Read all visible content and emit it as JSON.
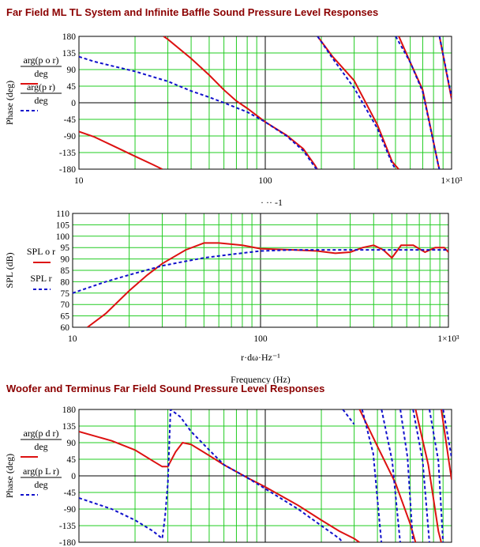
{
  "sections": {
    "title1": "Far Field ML TL System and Infinite Baffle Sound Pressure Level Responses",
    "title2": "Woofer and Terminus Far Field Sound Pressure Level Responses"
  },
  "colors": {
    "red": "#dd1111",
    "blue": "#1111cc",
    "grid": "#22cc22",
    "axis": "#000000"
  },
  "chart_data": [
    {
      "type": "line",
      "ylabel": "Phase (deg)",
      "x_scale": "log",
      "xlim": [
        10,
        1000
      ],
      "ylim": [
        -180,
        180
      ],
      "yticks": [
        "180",
        "135",
        "90",
        "45",
        "0",
        "-45",
        "-90",
        "-135",
        "-180"
      ],
      "xticks": [
        "10",
        "100",
        "1×10³"
      ],
      "xlabel_partial": "· ··  -1",
      "legend": [
        {
          "num": "arg(p o r)",
          "den": "deg",
          "style": "solid",
          "color": "red"
        },
        {
          "num": "arg(p r)",
          "den": "deg",
          "style": "dashed",
          "color": "blue"
        }
      ],
      "series": [
        {
          "style": "solid",
          "color": "red",
          "points": [
            [
              10,
              -78
            ],
            [
              12,
              -92
            ],
            [
              15,
              -115
            ],
            [
              20,
              -145
            ],
            [
              25,
              -168
            ],
            [
              28,
              -180
            ],
            [
              28.5,
              180
            ],
            [
              30,
              172
            ],
            [
              40,
              120
            ],
            [
              50,
              75
            ],
            [
              60,
              35
            ],
            [
              70,
              5
            ],
            [
              80,
              -15
            ],
            [
              100,
              -52
            ],
            [
              130,
              -88
            ],
            [
              160,
              -125
            ],
            [
              185,
              -170
            ],
            [
              190,
              -180
            ],
            [
              191,
              180
            ],
            [
              230,
              125
            ],
            [
              300,
              60
            ],
            [
              400,
              -60
            ],
            [
              480,
              -160
            ],
            [
              520,
              -180
            ],
            [
              521,
              180
            ],
            [
              600,
              110
            ],
            [
              700,
              35
            ],
            [
              850,
              -170
            ],
            [
              860,
              -180
            ],
            [
              861,
              180
            ],
            [
              1000,
              10
            ]
          ]
        },
        {
          "style": "dashed",
          "color": "blue",
          "points": [
            [
              10,
              125
            ],
            [
              12,
              112
            ],
            [
              15,
              100
            ],
            [
              20,
              85
            ],
            [
              25,
              70
            ],
            [
              30,
              58
            ],
            [
              40,
              32
            ],
            [
              50,
              15
            ],
            [
              60,
              0
            ],
            [
              80,
              -25
            ],
            [
              100,
              -52
            ],
            [
              130,
              -90
            ],
            [
              160,
              -130
            ],
            [
              185,
              -175
            ],
            [
              190,
              -180
            ],
            [
              191,
              180
            ],
            [
              230,
              120
            ],
            [
              300,
              40
            ],
            [
              400,
              -70
            ],
            [
              480,
              -165
            ],
            [
              500,
              -180
            ],
            [
              501,
              180
            ],
            [
              600,
              110
            ],
            [
              700,
              30
            ],
            [
              850,
              -170
            ],
            [
              860,
              -180
            ],
            [
              861,
              180
            ],
            [
              1000,
              15
            ]
          ]
        }
      ]
    },
    {
      "type": "line",
      "ylabel": "SPL (dB)",
      "x_scale": "log",
      "xlim": [
        10,
        1000
      ],
      "ylim": [
        60,
        110
      ],
      "yticks": [
        "110",
        "105",
        "100",
        "95",
        "90",
        "85",
        "80",
        "75",
        "70",
        "65",
        "60"
      ],
      "xticks": [
        "10",
        "100",
        "1×10³"
      ],
      "xlabel": "r·dω·Hz⁻¹",
      "xfooter": "Frequency (Hz)",
      "legend": [
        {
          "num": "SPL o r",
          "style": "solid",
          "color": "red"
        },
        {
          "num": "SPL r",
          "style": "dashed",
          "color": "blue"
        }
      ],
      "series": [
        {
          "style": "solid",
          "color": "red",
          "points": [
            [
              12,
              60
            ],
            [
              15,
              66
            ],
            [
              20,
              76
            ],
            [
              25,
              83
            ],
            [
              30,
              88
            ],
            [
              40,
              94
            ],
            [
              50,
              97
            ],
            [
              60,
              97
            ],
            [
              80,
              96
            ],
            [
              100,
              94.5
            ],
            [
              150,
              94
            ],
            [
              200,
              93.5
            ],
            [
              250,
              92.5
            ],
            [
              300,
              93
            ],
            [
              350,
              95
            ],
            [
              400,
              96
            ],
            [
              450,
              94
            ],
            [
              500,
              90.5
            ],
            [
              560,
              96
            ],
            [
              650,
              96
            ],
            [
              750,
              93
            ],
            [
              850,
              95
            ],
            [
              950,
              95
            ],
            [
              1000,
              93
            ]
          ]
        },
        {
          "style": "dashed",
          "color": "blue",
          "points": [
            [
              10,
              75
            ],
            [
              15,
              80
            ],
            [
              20,
              83
            ],
            [
              30,
              87
            ],
            [
              40,
              89
            ],
            [
              50,
              90.5
            ],
            [
              70,
              92
            ],
            [
              100,
              93.5
            ],
            [
              150,
              94
            ],
            [
              250,
              94
            ],
            [
              400,
              94
            ],
            [
              500,
              94
            ],
            [
              600,
              94
            ],
            [
              800,
              94
            ],
            [
              1000,
              94
            ]
          ]
        }
      ]
    },
    {
      "type": "line",
      "ylabel": "Phase (deg)",
      "x_scale": "log",
      "xlim": [
        10,
        1000
      ],
      "ylim": [
        -180,
        180
      ],
      "yticks": [
        "180",
        "135",
        "90",
        "45",
        "0",
        "-45",
        "-90",
        "-135",
        "-180"
      ],
      "legend": [
        {
          "num": "arg(p d r)",
          "den": "deg",
          "style": "solid",
          "color": "red"
        },
        {
          "num": "arg(p L r)",
          "den": "deg",
          "style": "dashed",
          "color": "blue"
        }
      ],
      "series": [
        {
          "style": "solid",
          "color": "red",
          "points": [
            [
              10,
              120
            ],
            [
              15,
              95
            ],
            [
              20,
              70
            ],
            [
              25,
              40
            ],
            [
              28,
              25
            ],
            [
              30,
              25
            ],
            [
              33,
              65
            ],
            [
              36,
              90
            ],
            [
              40,
              85
            ],
            [
              50,
              55
            ],
            [
              60,
              30
            ],
            [
              80,
              -5
            ],
            [
              100,
              -30
            ],
            [
              150,
              -80
            ],
            [
              200,
              -120
            ],
            [
              250,
              -150
            ],
            [
              300,
              -170
            ],
            [
              320,
              -180
            ],
            [
              321,
              180
            ],
            [
              400,
              80
            ],
            [
              500,
              -20
            ],
            [
              600,
              -130
            ],
            [
              640,
              -180
            ],
            [
              641,
              180
            ],
            [
              750,
              30
            ],
            [
              850,
              -150
            ],
            [
              880,
              -180
            ],
            [
              881,
              180
            ],
            [
              1000,
              -10
            ]
          ]
        },
        {
          "style": "dashed",
          "color": "blue",
          "points": [
            [
              10,
              -60
            ],
            [
              15,
              -90
            ],
            [
              20,
              -120
            ],
            [
              25,
              -150
            ],
            [
              28,
              -170
            ],
            [
              29,
              -110
            ],
            [
              30,
              -20
            ],
            [
              31,
              180
            ],
            [
              35,
              160
            ],
            [
              40,
              120
            ],
            [
              50,
              70
            ],
            [
              60,
              30
            ],
            [
              80,
              -5
            ],
            [
              100,
              -35
            ],
            [
              150,
              -90
            ],
            [
              200,
              -135
            ],
            [
              250,
              -170
            ],
            [
              260,
              -180
            ],
            [
              261,
              180
            ],
            [
              300,
              140
            ],
            [
              330,
              -180
            ],
            [
              331,
              180
            ],
            [
              380,
              60
            ],
            [
              420,
              -180
            ],
            [
              421,
              180
            ],
            [
              480,
              40
            ],
            [
              530,
              -180
            ],
            [
              531,
              180
            ],
            [
              580,
              50
            ],
            [
              620,
              -180
            ],
            [
              621,
              180
            ],
            [
              700,
              40
            ],
            [
              760,
              -180
            ],
            [
              761,
              180
            ],
            [
              850,
              40
            ],
            [
              900,
              -180
            ],
            [
              901,
              180
            ],
            [
              1000,
              50
            ]
          ]
        }
      ]
    }
  ]
}
